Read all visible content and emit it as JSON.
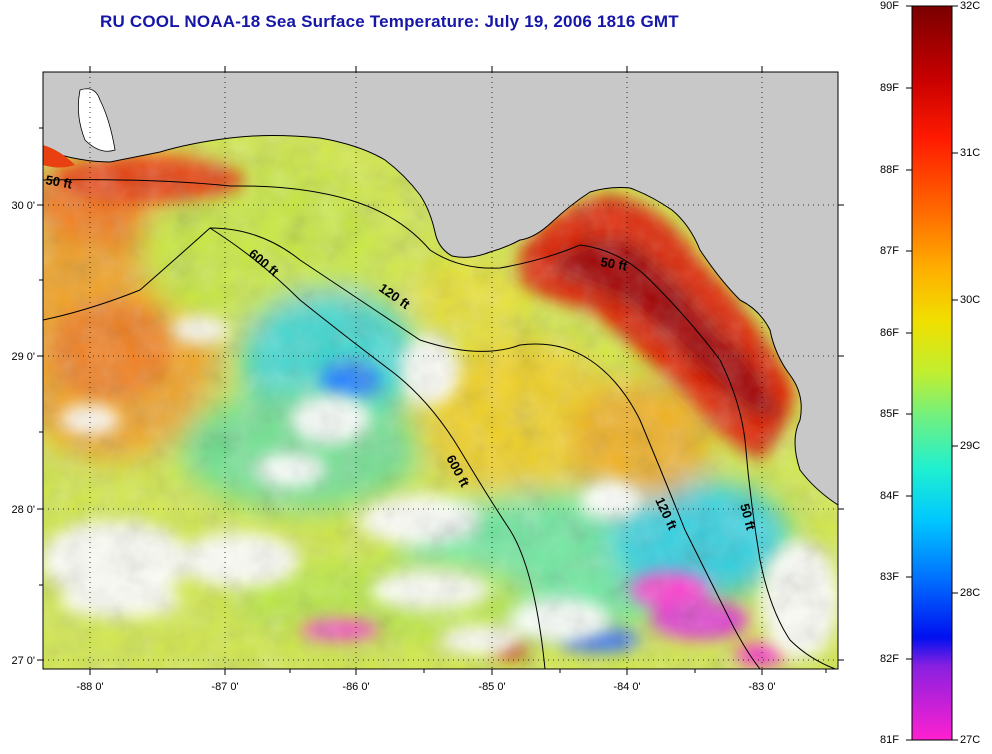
{
  "title": "RU COOL  NOAA-18  Sea Surface Temperature:  July 19, 2006 1816 GMT",
  "map": {
    "lon_range": [
      -88.3,
      -82.5
    ],
    "lat_range": [
      26.95,
      30.85
    ],
    "lon_ticks": [
      -88,
      -87,
      -86,
      -85,
      -84,
      -83
    ],
    "lat_ticks": [
      27,
      28,
      29,
      30
    ],
    "lon_labels": [
      "-88 0'",
      "-87 0'",
      "-86 0'",
      "-85 0'",
      "-84 0'",
      "-83 0'"
    ],
    "lat_labels": [
      "27 0'",
      "28 0'",
      "29 0'",
      "30 0'"
    ],
    "grid": "dotted",
    "land_color": "#c8c8c8",
    "cloud_color": "#ffffff"
  },
  "contour_labels": [
    "50 ft",
    "600 ft",
    "120 ft",
    "50 ft",
    "600 ft",
    "120 ft",
    "50 ft"
  ],
  "colorbar": {
    "fahrenheit_labels": [
      "90F",
      "89F",
      "88F",
      "87F",
      "86F",
      "85F",
      "84F",
      "83F",
      "82F",
      "81F"
    ],
    "celsius_labels": [
      "32C",
      "31C",
      "30C",
      "29C",
      "28C",
      "27C"
    ],
    "colors": [
      "#7a0000",
      "#c80000",
      "#ff1a00",
      "#ff6a00",
      "#ffb000",
      "#f0e000",
      "#c0ee30",
      "#70f080",
      "#20f0d0",
      "#00c8ff",
      "#0070ff",
      "#0010f0",
      "#8a20e0",
      "#ff20d0"
    ]
  }
}
